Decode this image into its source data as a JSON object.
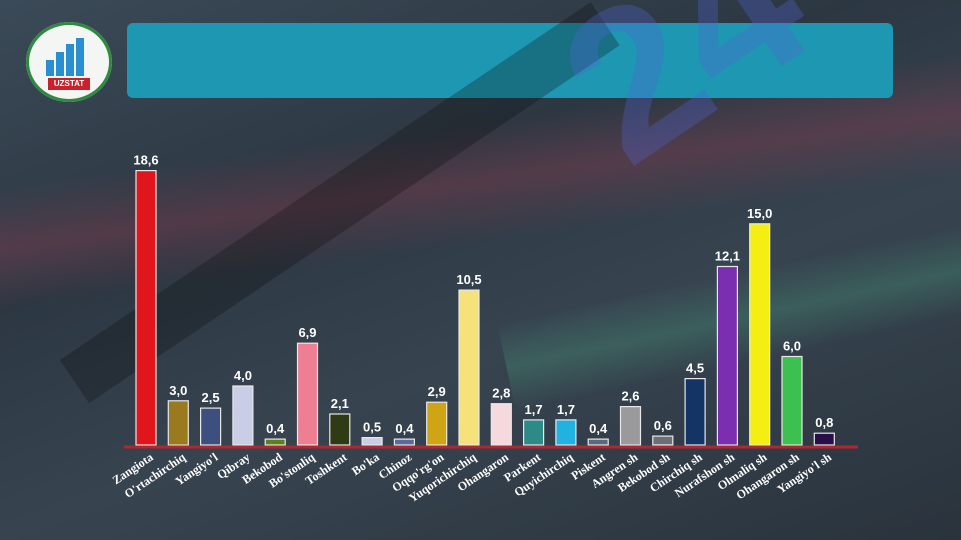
{
  "header": {
    "logo_text": "UZSTAT",
    "title": "",
    "subtitle": ""
  },
  "watermark": "24",
  "colors": {
    "title_box": "#1e97b2",
    "baseline": "#b3262e"
  },
  "chart_data": {
    "type": "bar",
    "title": "",
    "xlabel": "",
    "ylabel": "",
    "ylim": [
      0,
      20
    ],
    "grid": false,
    "categories": [
      "Zangiota",
      "O'rtachirchiq",
      "Yangiyo'l",
      "Qibray",
      "Bekobod",
      "Bo'stonliq",
      "Toshkent",
      "Bo'ka",
      "Chinoz",
      "Oqqo'rg'on",
      "Yuqorichirchiq",
      "Ohangaron",
      "Parkent",
      "Quyichirchiq",
      "Piskent",
      "Angren sh",
      "Bekobod sh",
      "Chirchiq sh",
      "Nurafshon sh",
      "Olmaliq sh",
      "Ohangaron sh",
      "Yangiyo'l sh"
    ],
    "values": [
      18.6,
      3.0,
      2.5,
      4.0,
      0.4,
      6.9,
      2.1,
      0.5,
      0.4,
      2.9,
      10.5,
      2.8,
      1.7,
      1.7,
      0.4,
      2.6,
      0.6,
      4.5,
      12.1,
      15.0,
      6.0,
      0.8
    ],
    "value_labels": [
      "18,6",
      "3,0",
      "2,5",
      "4,0",
      "0,4",
      "6,9",
      "2,1",
      "0,5",
      "0,4",
      "2,9",
      "10,5",
      "2,8",
      "1,7",
      "1,7",
      "0,4",
      "2,6",
      "0,6",
      "4,5",
      "12,1",
      "15,0",
      "6,0",
      "0,8"
    ],
    "colors": [
      "#e0161c",
      "#9a7a1e",
      "#3c4f7e",
      "#c9cde6",
      "#5f7f1f",
      "#ee7f93",
      "#2f3b14",
      "#c9cde6",
      "#5a6aa0",
      "#cfa516",
      "#f5e27a",
      "#f5d9dd",
      "#2e8a86",
      "#22b2e2",
      "#5d6780",
      "#9a9a9c",
      "#6a7074",
      "#143466",
      "#7b2fb0",
      "#f5ee12",
      "#3cc050",
      "#2a0e4a"
    ]
  }
}
